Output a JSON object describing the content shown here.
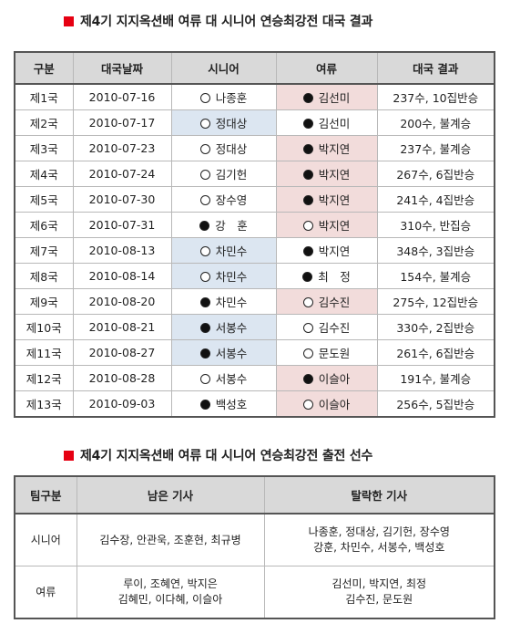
{
  "title1": "제4기 지지옥션배 여류 대 시니어 연승최강전 대국 결과",
  "title2": "제4기 지지옥션배 여류 대 시니어 연승최강전 출전 선수",
  "results": {
    "headers": [
      "구분",
      "대국날짜",
      "시니어",
      "여류",
      "대국 결과"
    ],
    "rows": [
      {
        "round": "제1국",
        "date": "2010-07-16",
        "senior": "나종훈",
        "senior_stone": "white",
        "senior_win": false,
        "female": "김선미",
        "female_stone": "black",
        "female_win": true,
        "result": "237수, 10집반승"
      },
      {
        "round": "제2국",
        "date": "2010-07-17",
        "senior": "정대상",
        "senior_stone": "white",
        "senior_win": true,
        "female": "김선미",
        "female_stone": "black",
        "female_win": false,
        "result": "200수, 불계승"
      },
      {
        "round": "제3국",
        "date": "2010-07-23",
        "senior": "정대상",
        "senior_stone": "white",
        "senior_win": false,
        "female": "박지연",
        "female_stone": "black",
        "female_win": true,
        "result": "237수, 불계승"
      },
      {
        "round": "제4국",
        "date": "2010-07-24",
        "senior": "김기헌",
        "senior_stone": "white",
        "senior_win": false,
        "female": "박지연",
        "female_stone": "black",
        "female_win": true,
        "result": "267수, 6집반승"
      },
      {
        "round": "제5국",
        "date": "2010-07-30",
        "senior": "장수영",
        "senior_stone": "white",
        "senior_win": false,
        "female": "박지연",
        "female_stone": "black",
        "female_win": true,
        "result": "241수, 4집반승"
      },
      {
        "round": "제6국",
        "date": "2010-07-31",
        "senior": "강　훈",
        "senior_stone": "black",
        "senior_win": false,
        "female": "박지연",
        "female_stone": "white",
        "female_win": true,
        "result": "310수, 반집승"
      },
      {
        "round": "제7국",
        "date": "2010-08-13",
        "senior": "차민수",
        "senior_stone": "white",
        "senior_win": true,
        "female": "박지연",
        "female_stone": "black",
        "female_win": false,
        "result": "348수, 3집반승"
      },
      {
        "round": "제8국",
        "date": "2010-08-14",
        "senior": "차민수",
        "senior_stone": "white",
        "senior_win": true,
        "female": "최　정",
        "female_stone": "black",
        "female_win": false,
        "result": "154수, 불계승"
      },
      {
        "round": "제9국",
        "date": "2010-08-20",
        "senior": "차민수",
        "senior_stone": "black",
        "senior_win": false,
        "female": "김수진",
        "female_stone": "white",
        "female_win": true,
        "result": "275수, 12집반승"
      },
      {
        "round": "제10국",
        "date": "2010-08-21",
        "senior": "서봉수",
        "senior_stone": "black",
        "senior_win": true,
        "female": "김수진",
        "female_stone": "white",
        "female_win": false,
        "result": "330수, 2집반승"
      },
      {
        "round": "제11국",
        "date": "2010-08-27",
        "senior": "서봉수",
        "senior_stone": "black",
        "senior_win": true,
        "female": "문도원",
        "female_stone": "white",
        "female_win": false,
        "result": "261수, 6집반승"
      },
      {
        "round": "제12국",
        "date": "2010-08-28",
        "senior": "서봉수",
        "senior_stone": "white",
        "senior_win": false,
        "female": "이슬아",
        "female_stone": "black",
        "female_win": true,
        "result": "191수, 불계승"
      },
      {
        "round": "제13국",
        "date": "2010-09-03",
        "senior": "백성호",
        "senior_stone": "black",
        "senior_win": false,
        "female": "이슬아",
        "female_stone": "white",
        "female_win": true,
        "result": "256수, 5집반승"
      }
    ]
  },
  "players": {
    "headers": [
      "팀구분",
      "남은 기사",
      "탈락한 기사"
    ],
    "rows": [
      {
        "team": "시니어",
        "remaining": [
          "김수장, 안관욱, 조훈현, 최규병"
        ],
        "eliminated": [
          "나종훈, 정대상, 김기헌, 장수영",
          "강훈, 차민수, 서봉수, 백성호"
        ]
      },
      {
        "team": "여류",
        "remaining": [
          "루이, 조혜연, 박지은",
          "김혜민, 이다혜, 이슬아"
        ],
        "eliminated": [
          "김선미, 박지연, 최정",
          "김수진, 문도원"
        ]
      }
    ]
  },
  "colors": {
    "winner_senior": "#dce6f1",
    "winner_female": "#f2dcdb",
    "header_bg": "#d9d9d9",
    "title_marker": "#e60012"
  }
}
